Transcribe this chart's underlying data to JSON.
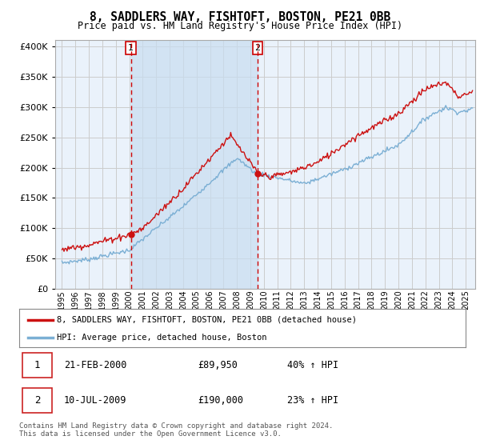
{
  "title": "8, SADDLERS WAY, FISHTOFT, BOSTON, PE21 0BB",
  "subtitle": "Price paid vs. HM Land Registry's House Price Index (HPI)",
  "legend_line1": "8, SADDLERS WAY, FISHTOFT, BOSTON, PE21 0BB (detached house)",
  "legend_line2": "HPI: Average price, detached house, Boston",
  "footer": "Contains HM Land Registry data © Crown copyright and database right 2024.\nThis data is licensed under the Open Government Licence v3.0.",
  "sale1_label": "1",
  "sale1_date": "21-FEB-2000",
  "sale1_price": "£89,950",
  "sale1_hpi": "40% ↑ HPI",
  "sale2_label": "2",
  "sale2_date": "10-JUL-2009",
  "sale2_price": "£190,000",
  "sale2_hpi": "23% ↑ HPI",
  "sale1_x": 2000.13,
  "sale1_y": 89950,
  "sale2_x": 2009.53,
  "sale2_y": 190000,
  "vline1_x": 2000.13,
  "vline2_x": 2009.53,
  "hpi_color": "#7bafd4",
  "property_color": "#cc1111",
  "vline_color": "#cc0000",
  "grid_color": "#cccccc",
  "background_color": "#ffffff",
  "plot_bg_color": "#eaf2fb",
  "shade_color": "#c8ddf0",
  "ylim": [
    0,
    410000
  ],
  "xlim_start": 1994.5,
  "xlim_end": 2025.7
}
